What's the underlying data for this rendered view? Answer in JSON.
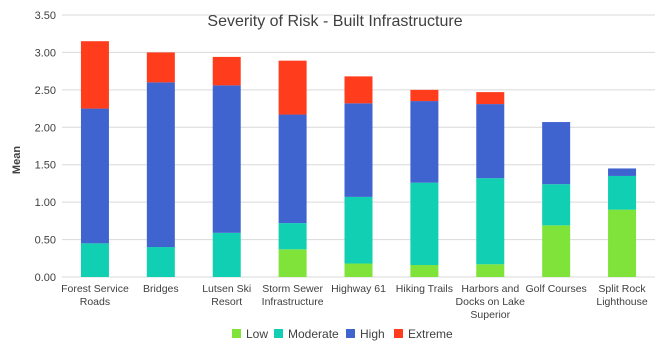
{
  "chart_data": {
    "type": "bar",
    "stacked": true,
    "title": "Severity of Risk - Built Infrastructure",
    "xlabel": "",
    "ylabel": "Mean",
    "ylim": [
      0,
      3.5
    ],
    "yticks": [
      "0.00",
      "0.50",
      "1.00",
      "1.50",
      "2.00",
      "2.50",
      "3.00",
      "3.50"
    ],
    "grid": true,
    "legend": "bottom",
    "categories": [
      [
        "Forest Service",
        "Roads"
      ],
      [
        "Bridges"
      ],
      [
        "Lutsen Ski",
        "Resort"
      ],
      [
        "Storm Sewer",
        "Infrastructure"
      ],
      [
        "Highway 61"
      ],
      [
        "Hiking Trails"
      ],
      [
        "Harbors and",
        "Docks on Lake",
        "Superior"
      ],
      [
        "Golf Courses"
      ],
      [
        "Split Rock",
        "Lighthouse"
      ]
    ],
    "series": [
      {
        "name": "Low",
        "color": "#7fe33a",
        "values": [
          0,
          0,
          0,
          0.37,
          0.18,
          0.16,
          0.17,
          0.69,
          0.9
        ]
      },
      {
        "name": "Moderate",
        "color": "#10cfb2",
        "values": [
          0.45,
          0.4,
          0.59,
          0.35,
          0.89,
          1.1,
          1.15,
          0.55,
          0.45
        ]
      },
      {
        "name": "High",
        "color": "#3f63cf",
        "values": [
          1.8,
          2.2,
          1.97,
          1.45,
          1.25,
          1.09,
          0.99,
          0.83,
          0.1
        ]
      },
      {
        "name": "Extreme",
        "color": "#ff3c1c",
        "values": [
          0.9,
          0.4,
          0.38,
          0.72,
          0.36,
          0.15,
          0.16,
          0,
          0
        ]
      }
    ]
  }
}
